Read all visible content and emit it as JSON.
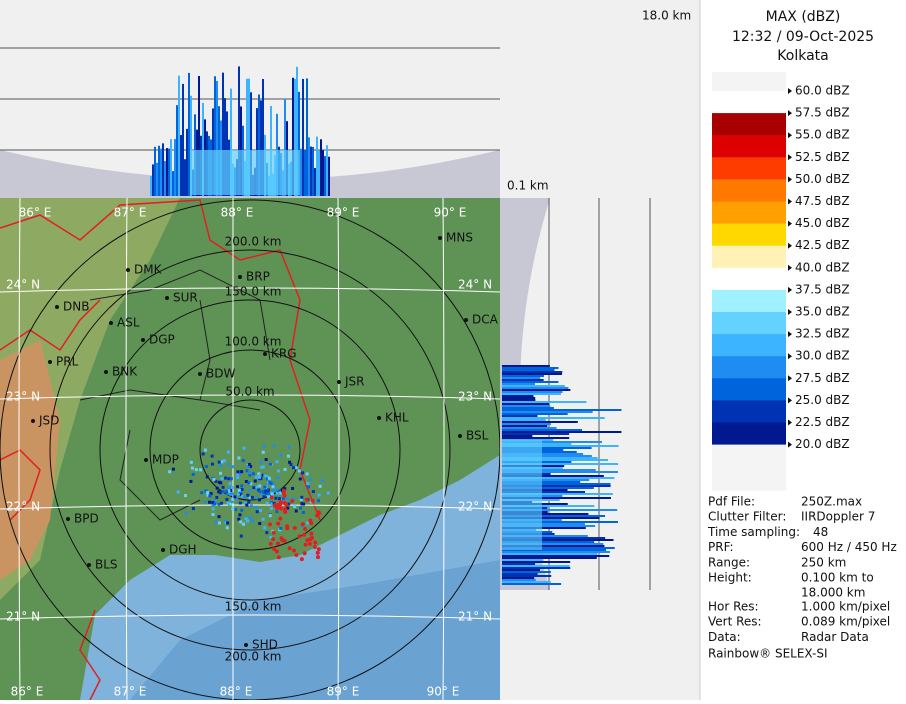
{
  "header": {
    "title": "MAX (dBZ)",
    "time": "12:32 / 09-Oct-2025",
    "station": "Kolkata"
  },
  "height_labels": {
    "top": "18.0 km",
    "bottom": "0.1 km"
  },
  "legend": {
    "labels": [
      "60.0 dBZ",
      "57.5 dBZ",
      "55.0 dBZ",
      "52.5 dBZ",
      "50.0 dBZ",
      "47.5 dBZ",
      "45.0 dBZ",
      "42.5 dBZ",
      "40.0 dBZ",
      "37.5 dBZ",
      "35.0 dBZ",
      "32.5 dBZ",
      "30.0 dBZ",
      "27.5 dBZ",
      "25.0 dBZ",
      "22.5 dBZ",
      "20.0 dBZ"
    ],
    "colors": [
      "#ffffff",
      "#a80000",
      "#dc0000",
      "#ff3c00",
      "#ff7800",
      "#ffa000",
      "#ffd800",
      "#fff2b4",
      "#ffffff",
      "#a0f0ff",
      "#64d2ff",
      "#3cb4ff",
      "#1e8cf0",
      "#0064dc",
      "#0032b4",
      "#001890"
    ]
  },
  "info": {
    "rows": [
      [
        "Pdf File:",
        "250Z.max"
      ],
      [
        "Clutter Filter:",
        "IIRDoppler 7"
      ],
      [
        "Time sampling:",
        "48"
      ],
      [
        "PRF:",
        "600 Hz / 450 Hz"
      ],
      [
        "Range:",
        "250 km"
      ],
      [
        "Height:",
        "0.100 km to",
        "18.000 km"
      ],
      [
        "Hor Res:",
        "1.000 km/pixel"
      ],
      [
        "Vert Res:",
        "0.089 km/pixel"
      ],
      [
        "Data:",
        "Radar Data"
      ]
    ],
    "footer": "Rainbow® SELEX-SI"
  },
  "map": {
    "longitudes": [
      "86° E",
      "87° E",
      "88° E",
      "89° E",
      "90° E"
    ],
    "latitudes": [
      "24° N",
      "23° N",
      "22° N",
      "21° N"
    ],
    "ranges": [
      "50.0 km",
      "100.0 km",
      "150.0 km",
      "200.0 km"
    ],
    "cities": [
      "MNS",
      "DMK",
      "BRP",
      "DNB",
      "SUR",
      "DCA",
      "ASL",
      "DGP",
      "PRL",
      "KRG",
      "BNK",
      "BDW",
      "JSR",
      "KHL",
      "JSD",
      "BSL",
      "MDP",
      "BPD",
      "DGH",
      "BLS",
      "SHD"
    ]
  }
}
